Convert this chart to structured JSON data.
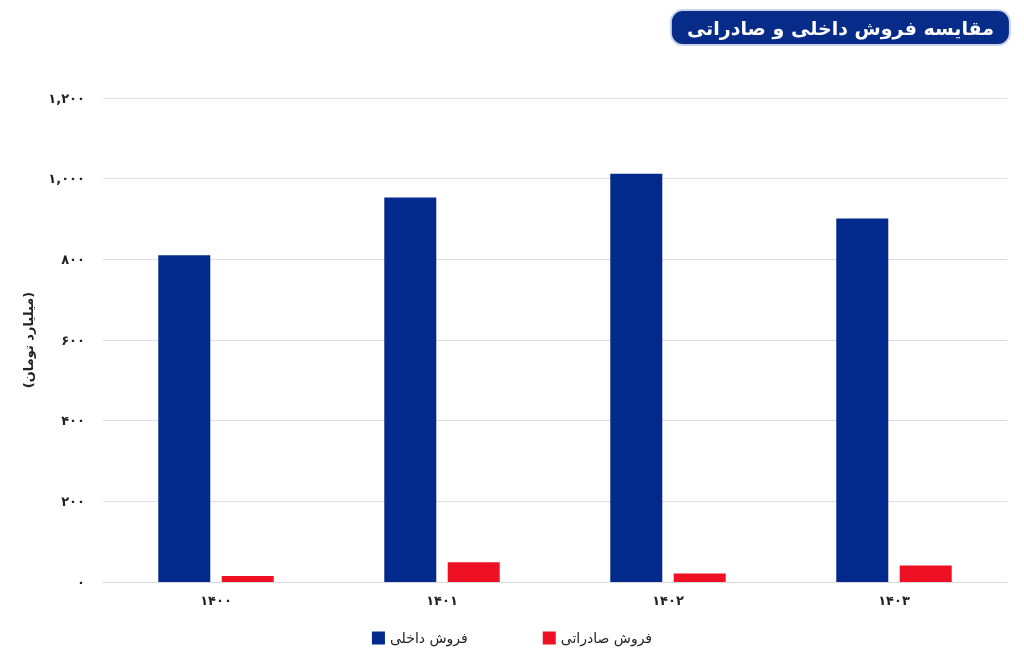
{
  "chart_data": {
    "type": "bar",
    "title": "مقایسه فروش داخلی و صادراتی",
    "ylabel": "(میلیارد تومان)",
    "categories": [
      "۱۴۰۰",
      "۱۴۰۱",
      "۱۴۰۲",
      "۱۴۰۳"
    ],
    "series": [
      {
        "name": "فروش داخلی",
        "color": "#022a8c",
        "values": [
          810,
          953,
          1012,
          901
        ]
      },
      {
        "name": "فروش صادراتی",
        "color": "#ed1123",
        "values": [
          15,
          49,
          21,
          41
        ]
      }
    ],
    "ylim": [
      0,
      1200
    ],
    "yticks": [
      {
        "value": 0,
        "label": "۰"
      },
      {
        "value": 200,
        "label": "۲۰۰"
      },
      {
        "value": 400,
        "label": "۴۰۰"
      },
      {
        "value": 600,
        "label": "۶۰۰"
      },
      {
        "value": 800,
        "label": "۸۰۰"
      },
      {
        "value": 1000,
        "label": "۱,۰۰۰"
      },
      {
        "value": 1200,
        "label": "۱,۲۰۰"
      }
    ],
    "grid": "y",
    "legend": "bottom"
  }
}
